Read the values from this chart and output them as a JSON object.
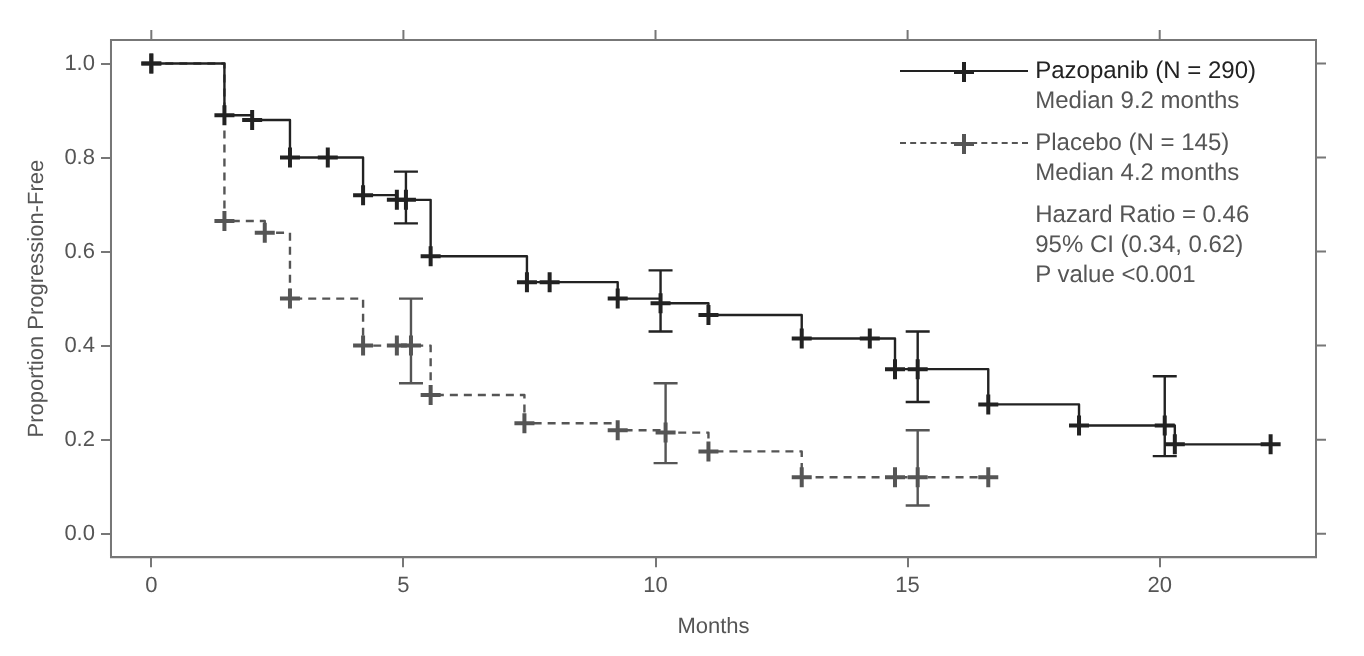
{
  "chart_data": {
    "type": "step",
    "xlabel": "Months",
    "ylabel": "Proportion Progression-Free",
    "xlim": [
      -0.8,
      23.1
    ],
    "ylim": [
      -0.05,
      1.05
    ],
    "xticks": [
      0,
      5,
      10,
      15,
      20
    ],
    "yticks": [
      {
        "value": 0,
        "label": "0.0"
      },
      {
        "value": 0.2,
        "label": "0.2"
      },
      {
        "value": 0.4,
        "label": "0.4"
      },
      {
        "value": 0.6,
        "label": "0.6"
      },
      {
        "value": 0.8,
        "label": "0.8"
      },
      {
        "value": 1,
        "label": "1.0"
      }
    ],
    "grid": false,
    "legend": "top right",
    "marker": "cross",
    "series": [
      {
        "name": "Pazopanib (N = 290)",
        "color": "#222222",
        "line_style": "solid",
        "x": [
          0,
          1.45,
          2.0,
          2.75,
          3.5,
          4.2,
          4.87,
          5.05,
          5.54,
          7.45,
          7.9,
          9.25,
          10.1,
          11.05,
          12.9,
          14.25,
          14.75,
          15.2,
          16.6,
          18.4,
          20.1,
          20.3,
          22.2
        ],
        "values": [
          1.0,
          0.89,
          0.88,
          0.8,
          0.8,
          0.72,
          0.71,
          0.71,
          0.59,
          0.535,
          0.535,
          0.5,
          0.49,
          0.465,
          0.415,
          0.415,
          0.35,
          0.35,
          0.275,
          0.23,
          0.23,
          0.19,
          0.19
        ],
        "errors": [
          null,
          null,
          null,
          null,
          null,
          null,
          null,
          [
            0.66,
            0.77
          ],
          null,
          null,
          null,
          null,
          [
            0.43,
            0.56
          ],
          null,
          null,
          null,
          null,
          [
            0.28,
            0.43
          ],
          null,
          null,
          [
            0.165,
            0.335
          ],
          null,
          null
        ]
      },
      {
        "name": "Placebo (N = 145)",
        "color": "#555555",
        "line_style": "dashed",
        "x": [
          0,
          1.45,
          2.25,
          2.75,
          4.2,
          4.87,
          5.15,
          5.54,
          7.4,
          9.25,
          10.2,
          11.05,
          12.9,
          14.75,
          15.2,
          16.6
        ],
        "values": [
          1.0,
          0.665,
          0.64,
          0.5,
          0.4,
          0.4,
          0.4,
          0.295,
          0.235,
          0.22,
          0.215,
          0.175,
          0.12,
          0.12,
          0.12,
          0.12
        ],
        "errors": [
          null,
          null,
          null,
          null,
          null,
          null,
          [
            0.32,
            0.5
          ],
          null,
          null,
          null,
          [
            0.15,
            0.32
          ],
          null,
          null,
          null,
          [
            0.06,
            0.22
          ],
          null
        ]
      }
    ],
    "annotations": [
      "Median 9.2 months",
      "Median 4.2 months",
      "Hazard Ratio = 0.46",
      "95% CI (0.34, 0.62)",
      "P value <0.001"
    ]
  }
}
